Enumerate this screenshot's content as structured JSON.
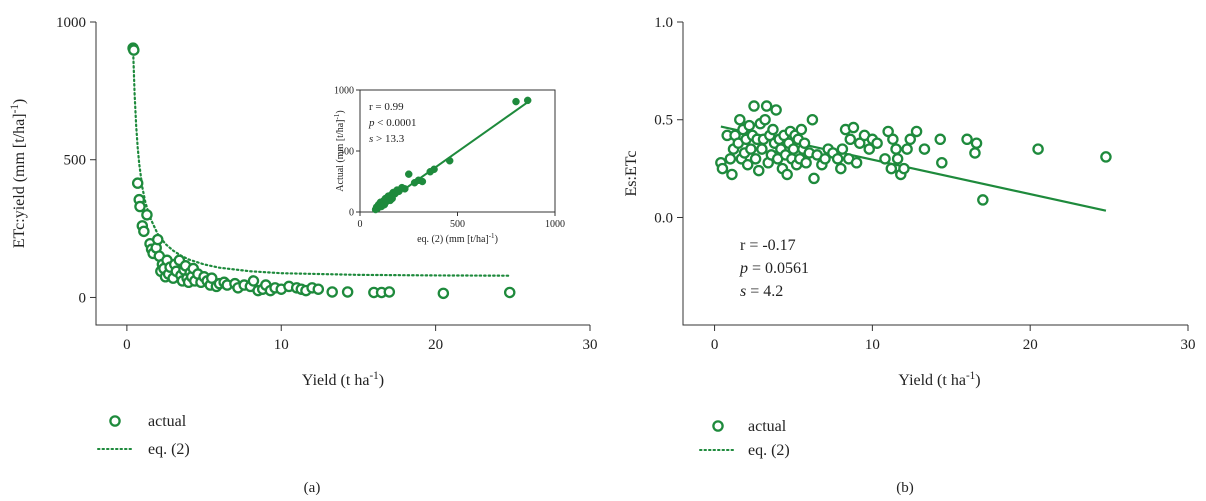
{
  "colors": {
    "series": "#1e8a3c",
    "axis": "#333333",
    "text": "#222222"
  },
  "chart_data": [
    {
      "type": "scatter",
      "panel_label": "(a)",
      "xlabel": "Yield (t ha",
      "xlabel_sup": "-1",
      "xlabel_end": ")",
      "ylabel": "ETc:yield (mm [t/ha]",
      "ylabel_sup": "-1",
      "ylabel_end": ")",
      "xlim": [
        -2,
        30
      ],
      "ylim": [
        -100,
        1000
      ],
      "xticks": [
        0,
        10,
        20,
        30
      ],
      "yticks": [
        0,
        500,
        1000
      ],
      "legend": {
        "placement": "bottom-left",
        "entries": [
          "actual",
          "eq. (2)"
        ]
      },
      "series": [
        {
          "name": "actual",
          "style": "open-circle",
          "points": [
            [
              0.4,
              905
            ],
            [
              0.45,
              898
            ],
            [
              0.7,
              415
            ],
            [
              0.8,
              355
            ],
            [
              0.85,
              330
            ],
            [
              1.0,
              260
            ],
            [
              1.1,
              240
            ],
            [
              1.3,
              300
            ],
            [
              1.5,
              195
            ],
            [
              1.6,
              175
            ],
            [
              1.7,
              160
            ],
            [
              1.9,
              180
            ],
            [
              2.0,
              210
            ],
            [
              2.1,
              150
            ],
            [
              2.2,
              95
            ],
            [
              2.3,
              120
            ],
            [
              2.4,
              105
            ],
            [
              2.5,
              75
            ],
            [
              2.6,
              135
            ],
            [
              2.7,
              85
            ],
            [
              2.8,
              110
            ],
            [
              3.0,
              70
            ],
            [
              3.1,
              120
            ],
            [
              3.2,
              95
            ],
            [
              3.4,
              135
            ],
            [
              3.5,
              80
            ],
            [
              3.6,
              60
            ],
            [
              3.7,
              100
            ],
            [
              3.8,
              115
            ],
            [
              3.9,
              70
            ],
            [
              4.0,
              55
            ],
            [
              4.1,
              90
            ],
            [
              4.2,
              75
            ],
            [
              4.3,
              105
            ],
            [
              4.4,
              60
            ],
            [
              4.6,
              85
            ],
            [
              4.8,
              55
            ],
            [
              5.0,
              75
            ],
            [
              5.2,
              60
            ],
            [
              5.4,
              45
            ],
            [
              5.5,
              70
            ],
            [
              5.8,
              40
            ],
            [
              6.0,
              50
            ],
            [
              6.3,
              55
            ],
            [
              6.5,
              45
            ],
            [
              7.0,
              50
            ],
            [
              7.2,
              35
            ],
            [
              7.6,
              45
            ],
            [
              8.0,
              40
            ],
            [
              8.2,
              60
            ],
            [
              8.5,
              25
            ],
            [
              8.8,
              30
            ],
            [
              9.0,
              45
            ],
            [
              9.3,
              25
            ],
            [
              9.6,
              35
            ],
            [
              10.0,
              30
            ],
            [
              10.5,
              40
            ],
            [
              11.0,
              35
            ],
            [
              11.3,
              30
            ],
            [
              11.6,
              25
            ],
            [
              12.0,
              35
            ],
            [
              12.4,
              30
            ],
            [
              13.3,
              20
            ],
            [
              14.3,
              20
            ],
            [
              16.0,
              18
            ],
            [
              16.5,
              18
            ],
            [
              17.0,
              20
            ],
            [
              20.5,
              15
            ],
            [
              24.8,
              18
            ]
          ]
        },
        {
          "name": "eq. (2)",
          "style": "dotted-line",
          "points": [
            [
              0.4,
              905
            ],
            [
              0.5,
              740
            ],
            [
              0.6,
              625
            ],
            [
              0.7,
              545
            ],
            [
              0.8,
              485
            ],
            [
              1.0,
              400
            ],
            [
              1.2,
              345
            ],
            [
              1.5,
              290
            ],
            [
              2.0,
              230
            ],
            [
              2.5,
              194
            ],
            [
              3.0,
              170
            ],
            [
              3.5,
              152
            ],
            [
              4.0,
              138
            ],
            [
              5.0,
              120
            ],
            [
              6.0,
              108
            ],
            [
              8.0,
              95
            ],
            [
              10.0,
              88
            ],
            [
              15.0,
              82
            ],
            [
              20.0,
              80
            ],
            [
              24.8,
              79
            ]
          ]
        }
      ],
      "inset": {
        "type": "scatter",
        "xlabel": "eq. (2) (mm [t/ha]",
        "xlabel_sup": "-1",
        "xlabel_end": ")",
        "ylabel": "Actual (mm [t/ha]",
        "ylabel_sup": "-1",
        "ylabel_end": ")",
        "xlim": [
          0,
          1000
        ],
        "ylim": [
          0,
          1000
        ],
        "xticks": [
          0,
          500,
          1000
        ],
        "yticks": [
          0,
          500,
          1000
        ],
        "stats": [
          {
            "label": "r",
            "text": "r = 0.99"
          },
          {
            "label": "p",
            "text": "p < 0.0001"
          },
          {
            "label": "s",
            "text": "s > 13.3"
          }
        ],
        "fit_line": [
          [
            80,
            20
          ],
          [
            860,
            900
          ]
        ],
        "points": [
          [
            80,
            20
          ],
          [
            85,
            40
          ],
          [
            90,
            30
          ],
          [
            95,
            60
          ],
          [
            100,
            50
          ],
          [
            105,
            80
          ],
          [
            110,
            45
          ],
          [
            115,
            70
          ],
          [
            120,
            90
          ],
          [
            125,
            60
          ],
          [
            130,
            110
          ],
          [
            135,
            85
          ],
          [
            140,
            100
          ],
          [
            145,
            130
          ],
          [
            150,
            120
          ],
          [
            155,
            95
          ],
          [
            160,
            140
          ],
          [
            165,
            110
          ],
          [
            170,
            160
          ],
          [
            180,
            150
          ],
          [
            190,
            180
          ],
          [
            200,
            170
          ],
          [
            215,
            200
          ],
          [
            230,
            190
          ],
          [
            250,
            310
          ],
          [
            280,
            240
          ],
          [
            300,
            260
          ],
          [
            320,
            250
          ],
          [
            360,
            330
          ],
          [
            380,
            350
          ],
          [
            460,
            420
          ],
          [
            800,
            905
          ],
          [
            860,
            915
          ]
        ]
      }
    },
    {
      "type": "scatter",
      "panel_label": "(b)",
      "xlabel": "Yield (t ha",
      "xlabel_sup": "-1",
      "xlabel_end": ")",
      "ylabel": "Es:ETc",
      "xlim": [
        -2,
        30
      ],
      "ylim": [
        -0.55,
        1.0
      ],
      "xticks": [
        0,
        10,
        20,
        30
      ],
      "yticks": [
        0.0,
        0.5,
        1.0
      ],
      "ytick_labels": [
        "0.0",
        "0.5",
        "1.0"
      ],
      "stats": [
        {
          "label": "r",
          "text": "r = -0.17"
        },
        {
          "label": "p",
          "text": "p = 0.0561"
        },
        {
          "label": "s",
          "text": "s = 4.2"
        }
      ],
      "fit_line": [
        [
          0.4,
          0.465
        ],
        [
          24.8,
          0.035
        ]
      ],
      "legend": {
        "placement": "bottom-left",
        "entries": [
          "actual",
          "eq. (2)"
        ]
      },
      "series": [
        {
          "name": "actual",
          "style": "open-circle",
          "points": [
            [
              0.4,
              0.28
            ],
            [
              0.5,
              0.25
            ],
            [
              0.8,
              0.42
            ],
            [
              1.0,
              0.3
            ],
            [
              1.1,
              0.22
            ],
            [
              1.2,
              0.35
            ],
            [
              1.3,
              0.42
            ],
            [
              1.5,
              0.38
            ],
            [
              1.6,
              0.5
            ],
            [
              1.7,
              0.3
            ],
            [
              1.8,
              0.45
            ],
            [
              1.9,
              0.33
            ],
            [
              2.0,
              0.4
            ],
            [
              2.1,
              0.27
            ],
            [
              2.2,
              0.47
            ],
            [
              2.3,
              0.35
            ],
            [
              2.4,
              0.42
            ],
            [
              2.5,
              0.57
            ],
            [
              2.6,
              0.3
            ],
            [
              2.7,
              0.4
            ],
            [
              2.8,
              0.24
            ],
            [
              2.9,
              0.48
            ],
            [
              3.0,
              0.35
            ],
            [
              3.1,
              0.4
            ],
            [
              3.2,
              0.5
            ],
            [
              3.3,
              0.57
            ],
            [
              3.4,
              0.28
            ],
            [
              3.5,
              0.42
            ],
            [
              3.6,
              0.32
            ],
            [
              3.7,
              0.45
            ],
            [
              3.8,
              0.38
            ],
            [
              3.9,
              0.55
            ],
            [
              4.0,
              0.3
            ],
            [
              4.1,
              0.4
            ],
            [
              4.2,
              0.35
            ],
            [
              4.3,
              0.25
            ],
            [
              4.4,
              0.42
            ],
            [
              4.5,
              0.32
            ],
            [
              4.6,
              0.22
            ],
            [
              4.7,
              0.38
            ],
            [
              4.8,
              0.44
            ],
            [
              4.9,
              0.3
            ],
            [
              5.0,
              0.35
            ],
            [
              5.1,
              0.42
            ],
            [
              5.2,
              0.27
            ],
            [
              5.3,
              0.4
            ],
            [
              5.4,
              0.3
            ],
            [
              5.5,
              0.45
            ],
            [
              5.6,
              0.35
            ],
            [
              5.7,
              0.38
            ],
            [
              5.8,
              0.28
            ],
            [
              6.0,
              0.33
            ],
            [
              6.2,
              0.5
            ],
            [
              6.3,
              0.2
            ],
            [
              6.5,
              0.32
            ],
            [
              6.8,
              0.27
            ],
            [
              7.0,
              0.3
            ],
            [
              7.2,
              0.35
            ],
            [
              7.5,
              0.33
            ],
            [
              7.8,
              0.3
            ],
            [
              8.0,
              0.25
            ],
            [
              8.1,
              0.35
            ],
            [
              8.3,
              0.45
            ],
            [
              8.5,
              0.3
            ],
            [
              8.6,
              0.4
            ],
            [
              8.8,
              0.46
            ],
            [
              9.0,
              0.28
            ],
            [
              9.2,
              0.38
            ],
            [
              9.5,
              0.42
            ],
            [
              9.8,
              0.35
            ],
            [
              10.0,
              0.4
            ],
            [
              10.3,
              0.38
            ],
            [
              10.8,
              0.3
            ],
            [
              11.0,
              0.44
            ],
            [
              11.2,
              0.25
            ],
            [
              11.3,
              0.4
            ],
            [
              11.5,
              0.35
            ],
            [
              11.6,
              0.3
            ],
            [
              11.8,
              0.22
            ],
            [
              12.0,
              0.25
            ],
            [
              12.2,
              0.35
            ],
            [
              12.4,
              0.4
            ],
            [
              12.8,
              0.44
            ],
            [
              13.3,
              0.35
            ],
            [
              14.3,
              0.4
            ],
            [
              14.4,
              0.28
            ],
            [
              16.0,
              0.4
            ],
            [
              16.5,
              0.33
            ],
            [
              16.6,
              0.38
            ],
            [
              17.0,
              0.09
            ],
            [
              20.5,
              0.35
            ],
            [
              24.8,
              0.31
            ]
          ]
        }
      ]
    }
  ]
}
